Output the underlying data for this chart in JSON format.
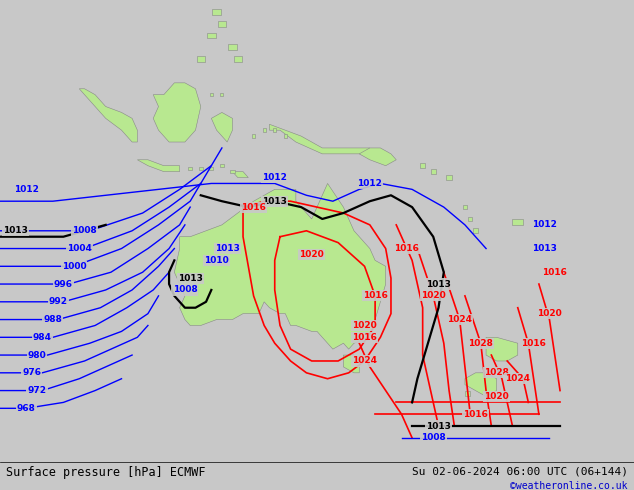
{
  "title_left": "Surface pressure [hPa] ECMWF",
  "title_right": "Su 02-06-2024 06:00 UTC (06+144)",
  "credit": "©weatheronline.co.uk",
  "bg_color": "#c8c8c8",
  "land_color": "#b8e890",
  "ocean_color": "#c8c8c8",
  "fig_width": 6.34,
  "fig_height": 4.9,
  "dpi": 100,
  "bottom_bar_color": "#ffffff",
  "bottom_bar_height": 0.058,
  "lon_min": 80,
  "lon_max": 200,
  "lat_min": -58,
  "lat_max": 20
}
